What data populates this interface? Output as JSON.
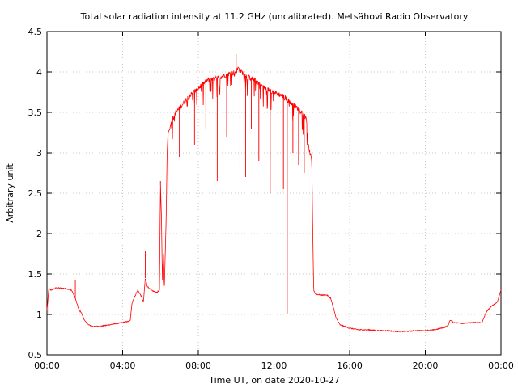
{
  "chart_data": {
    "type": "line",
    "title": "Total solar radiation intensity at 11.2 GHz (uncalibrated). Metsähovi Radio Observatory",
    "xlabel": "Time UT, on date 2020-10-27",
    "ylabel": "Arbitrary unit",
    "xlim": [
      0,
      24
    ],
    "ylim": [
      0.5,
      4.5
    ],
    "grid": true,
    "x_ticks": [
      0,
      4,
      8,
      12,
      16,
      20,
      24
    ],
    "x_tick_labels": [
      "00:00",
      "04:00",
      "08:00",
      "12:00",
      "16:00",
      "20:00",
      "00:00"
    ],
    "y_ticks": [
      0.5,
      1,
      1.5,
      2,
      2.5,
      3,
      3.5,
      4,
      4.5
    ],
    "y_tick_labels": [
      "0.5",
      "1",
      "1.5",
      "2",
      "2.5",
      "3",
      "3.5",
      "4",
      "4.5"
    ],
    "color": "#ff0000",
    "series": [
      {
        "x": [
          0.0,
          0.1,
          0.2,
          0.5,
          1.0,
          1.3,
          1.5,
          1.6,
          1.7,
          1.8,
          2.0,
          2.2,
          2.5,
          3.0,
          3.5,
          4.0,
          4.4,
          4.5,
          4.7,
          4.8,
          5.0,
          5.1,
          5.2,
          5.3,
          5.5,
          5.8,
          5.95,
          6.0,
          6.05,
          6.1,
          6.15,
          6.2,
          6.3,
          6.35,
          6.4,
          6.5,
          6.6,
          6.8,
          7.0,
          7.5,
          8.0,
          8.5,
          9.0,
          9.5,
          10.0,
          10.1,
          10.5,
          11.0,
          11.5,
          12.0,
          12.5,
          13.0,
          13.5,
          13.7,
          13.8,
          13.9,
          14.0,
          14.05,
          14.1,
          14.2,
          14.5,
          14.8,
          15.0,
          15.3,
          15.5,
          16.0,
          16.5,
          17.0,
          17.5,
          18.0,
          18.5,
          19.0,
          19.5,
          20.0,
          20.5,
          21.0,
          21.2,
          21.3,
          21.5,
          22.0,
          22.5,
          23.0,
          23.2,
          23.4,
          23.6,
          23.8,
          24.0
        ],
        "y": [
          1.05,
          1.32,
          1.3,
          1.33,
          1.32,
          1.3,
          1.2,
          1.12,
          1.05,
          1.03,
          0.92,
          0.87,
          0.85,
          0.86,
          0.88,
          0.9,
          0.92,
          1.15,
          1.25,
          1.3,
          1.22,
          1.15,
          1.45,
          1.35,
          1.3,
          1.27,
          1.3,
          2.6,
          2.2,
          1.4,
          1.8,
          1.3,
          2.2,
          3.0,
          3.25,
          3.3,
          3.4,
          3.5,
          3.55,
          3.7,
          3.8,
          3.9,
          3.92,
          3.97,
          4.0,
          4.05,
          3.95,
          3.9,
          3.8,
          3.75,
          3.7,
          3.6,
          3.5,
          3.45,
          3.1,
          3.0,
          2.9,
          2.0,
          1.3,
          1.25,
          1.24,
          1.24,
          1.2,
          0.95,
          0.87,
          0.83,
          0.81,
          0.81,
          0.8,
          0.8,
          0.79,
          0.79,
          0.8,
          0.8,
          0.81,
          0.84,
          0.86,
          0.93,
          0.9,
          0.89,
          0.9,
          0.9,
          1.02,
          1.08,
          1.12,
          1.15,
          1.3
        ]
      }
    ],
    "spikes": [
      {
        "x": 0.1,
        "y": 1.0
      },
      {
        "x": 1.5,
        "y": 1.42
      },
      {
        "x": 5.2,
        "y": 1.78
      },
      {
        "x": 6.0,
        "y": 2.65
      },
      {
        "x": 6.4,
        "y": 2.55
      },
      {
        "x": 7.0,
        "y": 2.95
      },
      {
        "x": 7.8,
        "y": 3.1
      },
      {
        "x": 8.4,
        "y": 3.3
      },
      {
        "x": 9.0,
        "y": 2.65
      },
      {
        "x": 9.5,
        "y": 3.2
      },
      {
        "x": 10.0,
        "y": 4.22
      },
      {
        "x": 10.2,
        "y": 2.8
      },
      {
        "x": 10.5,
        "y": 2.7
      },
      {
        "x": 10.8,
        "y": 3.3
      },
      {
        "x": 11.2,
        "y": 2.9
      },
      {
        "x": 11.8,
        "y": 2.5
      },
      {
        "x": 12.0,
        "y": 1.62
      },
      {
        "x": 12.5,
        "y": 2.55
      },
      {
        "x": 12.7,
        "y": 1.0
      },
      {
        "x": 13.0,
        "y": 3.0
      },
      {
        "x": 13.3,
        "y": 2.85
      },
      {
        "x": 13.6,
        "y": 2.75
      },
      {
        "x": 13.8,
        "y": 1.35
      },
      {
        "x": 21.2,
        "y": 1.22
      }
    ]
  }
}
